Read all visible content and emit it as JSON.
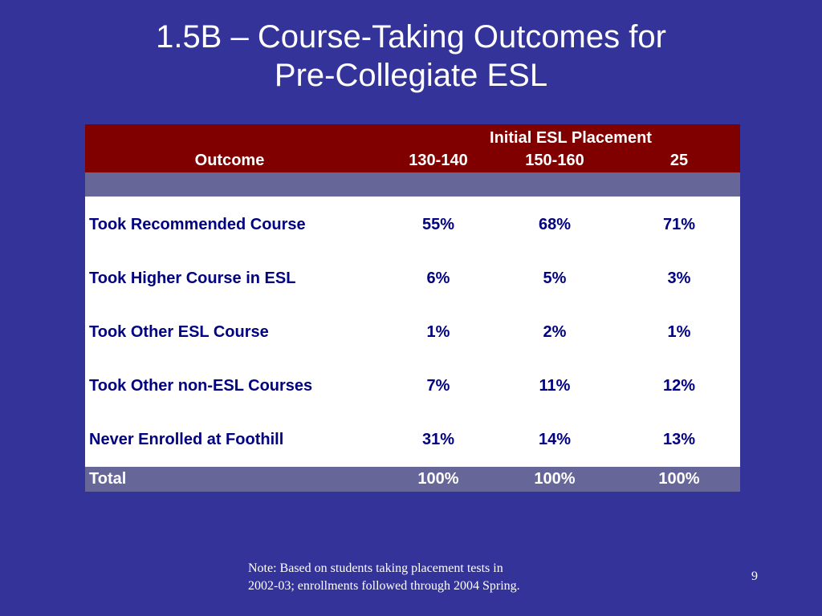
{
  "slide": {
    "title_line1": "1.5B – Course-Taking Outcomes for",
    "title_line2": "Pre-Collegiate ESL",
    "page_number": "9",
    "note_line1": "Note: Based on students taking placement tests in",
    "note_line2": "2002-03; enrollments followed through 2004 Spring."
  },
  "table": {
    "group_header": "Initial ESL Placement",
    "columns": [
      "Outcome",
      "130-140",
      "150-160",
      "25"
    ],
    "rows": [
      {
        "label": "Took Recommended Course",
        "values": [
          "55%",
          "68%",
          "71%"
        ]
      },
      {
        "label": "Took Higher Course in ESL",
        "values": [
          "6%",
          "5%",
          "3%"
        ]
      },
      {
        "label": "Took Other ESL Course",
        "values": [
          "1%",
          "2%",
          "1%"
        ]
      },
      {
        "label": "Took Other non-ESL Courses",
        "values": [
          "7%",
          "11%",
          "12%"
        ]
      },
      {
        "label": "Never Enrolled at Foothill",
        "values": [
          "31%",
          "14%",
          "13%"
        ]
      }
    ],
    "total": {
      "label": "Total",
      "values": [
        "100%",
        "100%",
        "100%"
      ]
    }
  },
  "colors": {
    "background": "#333399",
    "header": "#800000",
    "band": "#666699",
    "body_text": "#000080"
  }
}
